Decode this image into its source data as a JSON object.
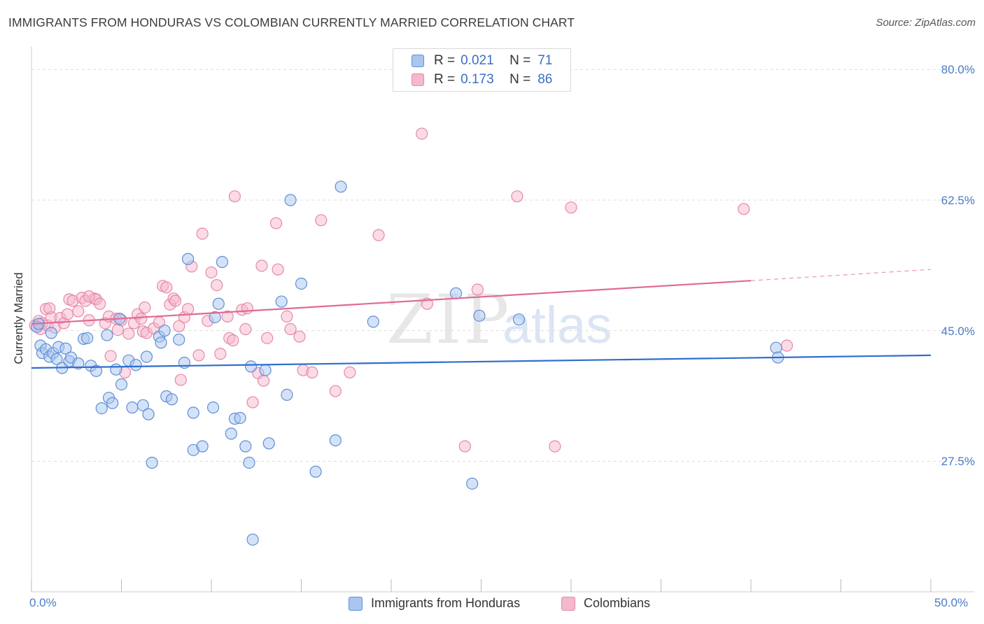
{
  "title": "IMMIGRANTS FROM HONDURAS VS COLOMBIAN CURRENTLY MARRIED CORRELATION CHART",
  "source": "Source: ZipAtlas.com",
  "watermark": {
    "zip": "ZIP",
    "atlas": "atlas"
  },
  "colors": {
    "blue_fill": "#a9c6ef",
    "blue_stroke": "#5f8fd6",
    "blue_line": "#2f6fce",
    "pink_fill": "#f5b8cd",
    "pink_stroke": "#e689a9",
    "pink_line": "#e06a95",
    "tick_text": "#4a7cc8",
    "grid": "#dddddd"
  },
  "legend": {
    "series1": {
      "r_label": "R =",
      "r_value": "0.021",
      "n_label": "N =",
      "n_value": "71"
    },
    "series2": {
      "r_label": "R =",
      "r_value": "0.173",
      "n_label": "N =",
      "n_value": "86"
    }
  },
  "bottom_legend": {
    "series1": "Immigrants from Honduras",
    "series2": "Colombians"
  },
  "chart_data": {
    "type": "scatter",
    "title": "IMMIGRANTS FROM HONDURAS VS COLOMBIAN CURRENTLY MARRIED CORRELATION CHART",
    "xlabel": "",
    "ylabel": "Currently Married",
    "xlim": [
      0,
      50
    ],
    "ylim": [
      10,
      82
    ],
    "x_tick_labels": [
      "0.0%",
      "50.0%"
    ],
    "y_ticks": [
      27.5,
      45.0,
      62.5,
      80.0
    ],
    "y_tick_labels": [
      "27.5%",
      "45.0%",
      "62.5%",
      "80.0%"
    ],
    "legend_position": "top-center",
    "series": [
      {
        "name": "Immigrants from Honduras",
        "r": 0.021,
        "n": 71,
        "trend": {
          "x": [
            0,
            50
          ],
          "y": [
            40.0,
            41.7
          ],
          "dashed_from": null
        },
        "points": [
          [
            0.3,
            45.5
          ],
          [
            0.5,
            43.0
          ],
          [
            0.6,
            42.0
          ],
          [
            0.8,
            42.5
          ],
          [
            1.0,
            41.5
          ],
          [
            1.2,
            42.0
          ],
          [
            1.4,
            41.2
          ],
          [
            1.5,
            42.8
          ],
          [
            1.7,
            40.0
          ],
          [
            1.9,
            42.6
          ],
          [
            2.1,
            40.9
          ],
          [
            2.2,
            41.4
          ],
          [
            2.6,
            40.6
          ],
          [
            2.9,
            43.9
          ],
          [
            3.1,
            44.0
          ],
          [
            3.3,
            40.3
          ],
          [
            3.6,
            39.6
          ],
          [
            3.9,
            34.6
          ],
          [
            4.2,
            44.4
          ],
          [
            4.3,
            36.0
          ],
          [
            4.5,
            35.3
          ],
          [
            4.7,
            39.8
          ],
          [
            4.9,
            46.6
          ],
          [
            5.0,
            37.8
          ],
          [
            5.4,
            41.0
          ],
          [
            5.6,
            34.7
          ],
          [
            5.8,
            40.4
          ],
          [
            6.2,
            35.0
          ],
          [
            6.4,
            41.5
          ],
          [
            6.5,
            33.8
          ],
          [
            6.7,
            27.3
          ],
          [
            7.1,
            44.2
          ],
          [
            7.2,
            43.4
          ],
          [
            7.4,
            45.0
          ],
          [
            7.5,
            36.2
          ],
          [
            7.8,
            35.8
          ],
          [
            8.2,
            43.8
          ],
          [
            8.5,
            40.7
          ],
          [
            8.7,
            54.6
          ],
          [
            9.0,
            34.0
          ],
          [
            9.0,
            29.0
          ],
          [
            9.5,
            29.5
          ],
          [
            10.1,
            34.7
          ],
          [
            10.2,
            46.8
          ],
          [
            10.4,
            48.6
          ],
          [
            10.6,
            54.2
          ],
          [
            11.1,
            31.2
          ],
          [
            11.3,
            33.2
          ],
          [
            11.6,
            33.3
          ],
          [
            11.9,
            29.5
          ],
          [
            12.1,
            27.3
          ],
          [
            12.2,
            40.2
          ],
          [
            12.3,
            17.0
          ],
          [
            13.0,
            39.7
          ],
          [
            13.2,
            29.9
          ],
          [
            13.9,
            48.9
          ],
          [
            14.2,
            36.4
          ],
          [
            14.4,
            62.5
          ],
          [
            15.0,
            51.3
          ],
          [
            15.8,
            26.1
          ],
          [
            16.9,
            30.3
          ],
          [
            17.2,
            64.3
          ],
          [
            19.0,
            46.2
          ],
          [
            23.6,
            50.0
          ],
          [
            24.5,
            24.5
          ],
          [
            24.9,
            47.0
          ],
          [
            27.1,
            46.5
          ],
          [
            41.4,
            42.7
          ],
          [
            41.5,
            41.4
          ],
          [
            0.4,
            45.9
          ],
          [
            1.1,
            44.7
          ]
        ]
      },
      {
        "name": "Colombians",
        "r": 0.173,
        "n": 86,
        "trend": {
          "x": [
            0,
            40,
            50
          ],
          "y": [
            45.9,
            51.7,
            53.2
          ],
          "dashed_from": 40
        },
        "points": [
          [
            0.2,
            45.7
          ],
          [
            0.4,
            46.3
          ],
          [
            0.5,
            45.2
          ],
          [
            0.6,
            46.0
          ],
          [
            0.8,
            47.9
          ],
          [
            0.9,
            45.7
          ],
          [
            1.1,
            46.8
          ],
          [
            1.3,
            45.4
          ],
          [
            1.6,
            46.7
          ],
          [
            1.8,
            46.0
          ],
          [
            2.0,
            47.2
          ],
          [
            2.1,
            49.2
          ],
          [
            2.3,
            49.0
          ],
          [
            2.6,
            47.6
          ],
          [
            2.8,
            49.4
          ],
          [
            3.0,
            49.0
          ],
          [
            3.2,
            46.4
          ],
          [
            3.5,
            49.3
          ],
          [
            3.6,
            49.2
          ],
          [
            3.8,
            48.6
          ],
          [
            4.1,
            46.0
          ],
          [
            4.3,
            46.9
          ],
          [
            4.4,
            41.6
          ],
          [
            4.7,
            46.6
          ],
          [
            4.8,
            45.1
          ],
          [
            5.0,
            46.4
          ],
          [
            5.2,
            39.4
          ],
          [
            5.4,
            44.6
          ],
          [
            5.7,
            46.0
          ],
          [
            5.9,
            47.2
          ],
          [
            6.1,
            46.6
          ],
          [
            6.2,
            44.9
          ],
          [
            6.3,
            48.1
          ],
          [
            6.4,
            44.7
          ],
          [
            6.8,
            45.3
          ],
          [
            7.1,
            46.1
          ],
          [
            7.3,
            51.0
          ],
          [
            7.5,
            50.8
          ],
          [
            7.7,
            48.5
          ],
          [
            7.9,
            49.3
          ],
          [
            8.0,
            49.0
          ],
          [
            8.2,
            45.6
          ],
          [
            8.3,
            38.4
          ],
          [
            8.5,
            46.8
          ],
          [
            8.7,
            47.9
          ],
          [
            8.9,
            53.6
          ],
          [
            9.3,
            41.7
          ],
          [
            9.5,
            58.0
          ],
          [
            9.8,
            46.3
          ],
          [
            10.0,
            52.8
          ],
          [
            10.3,
            51.1
          ],
          [
            10.5,
            41.9
          ],
          [
            10.9,
            46.9
          ],
          [
            11.0,
            44.0
          ],
          [
            11.2,
            43.7
          ],
          [
            11.3,
            63.0
          ],
          [
            11.7,
            47.8
          ],
          [
            11.9,
            45.2
          ],
          [
            12.0,
            48.0
          ],
          [
            12.3,
            35.4
          ],
          [
            12.6,
            39.3
          ],
          [
            12.8,
            53.7
          ],
          [
            12.9,
            38.3
          ],
          [
            13.1,
            44.0
          ],
          [
            13.6,
            59.4
          ],
          [
            13.7,
            53.2
          ],
          [
            14.2,
            46.9
          ],
          [
            14.4,
            45.2
          ],
          [
            14.9,
            44.2
          ],
          [
            15.1,
            39.7
          ],
          [
            15.6,
            39.4
          ],
          [
            16.1,
            59.8
          ],
          [
            16.9,
            36.9
          ],
          [
            17.7,
            39.4
          ],
          [
            19.3,
            57.8
          ],
          [
            21.7,
            71.4
          ],
          [
            22.0,
            48.6
          ],
          [
            24.1,
            29.5
          ],
          [
            24.8,
            50.5
          ],
          [
            27.0,
            63.0
          ],
          [
            29.1,
            29.5
          ],
          [
            30.0,
            61.5
          ],
          [
            39.6,
            61.3
          ],
          [
            42.0,
            43.0
          ],
          [
            1.0,
            48.0
          ],
          [
            3.2,
            49.6
          ]
        ]
      }
    ]
  }
}
